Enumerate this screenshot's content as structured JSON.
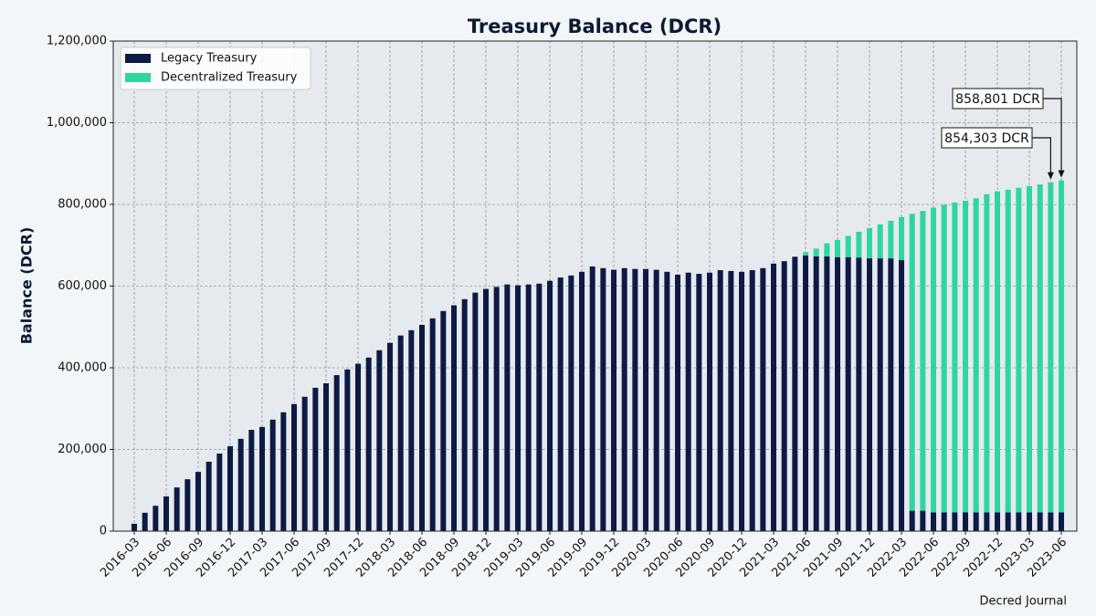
{
  "chart_data": {
    "type": "stacked_bar",
    "title": "Treasury Balance (DCR)",
    "ylabel": "Balance (DCR)",
    "credit": "Decred Journal",
    "categories": [
      "2016-03",
      null,
      null,
      "2016-06",
      null,
      null,
      "2016-09",
      null,
      null,
      "2016-12",
      null,
      null,
      "2017-03",
      null,
      null,
      "2017-06",
      null,
      null,
      "2017-09",
      null,
      null,
      "2017-12",
      null,
      null,
      "2018-03",
      null,
      null,
      "2018-06",
      null,
      null,
      "2018-09",
      null,
      null,
      "2018-12",
      null,
      null,
      "2019-03",
      null,
      null,
      "2019-06",
      null,
      null,
      "2019-09",
      null,
      null,
      "2019-12",
      null,
      null,
      "2020-03",
      null,
      null,
      "2020-06",
      null,
      null,
      "2020-09",
      null,
      null,
      "2020-12",
      null,
      null,
      "2021-03",
      null,
      null,
      "2021-06",
      null,
      null,
      "2021-09",
      null,
      null,
      "2021-12",
      null,
      null,
      "2022-03",
      null,
      null,
      "2022-06",
      null,
      null,
      "2022-09",
      null,
      null,
      "2022-12",
      null,
      null,
      "2023-03",
      null,
      null,
      "2023-06"
    ],
    "series": [
      {
        "name": "Legacy Treasury",
        "color": "#0d1a45",
        "values": [
          18000,
          45000,
          62000,
          85000,
          107000,
          127000,
          145000,
          170000,
          190000,
          208000,
          226000,
          248000,
          255000,
          273000,
          291000,
          311000,
          329000,
          351000,
          362000,
          382000,
          396000,
          410000,
          425000,
          443000,
          461000,
          479000,
          492000,
          505000,
          521000,
          539000,
          553000,
          568000,
          584000,
          593000,
          598000,
          604000,
          602000,
          604000,
          606000,
          613000,
          621000,
          626000,
          635000,
          648000,
          644000,
          640000,
          644000,
          642000,
          642000,
          640000,
          635000,
          628000,
          633000,
          630000,
          633000,
          639000,
          637000,
          635000,
          639000,
          644000,
          655000,
          661000,
          672000,
          675000,
          673000,
          673000,
          671000,
          671000,
          670000,
          668000,
          668000,
          668000,
          664000,
          50000,
          50000,
          46000,
          46000,
          46000,
          46000,
          46000,
          46000,
          46000,
          46000,
          46000,
          46000,
          46000,
          46000,
          46000
        ]
      },
      {
        "name": "Decentralized Treasury",
        "color": "#2ed6a0",
        "values": [
          null,
          null,
          null,
          null,
          null,
          null,
          null,
          null,
          null,
          null,
          null,
          null,
          null,
          null,
          null,
          null,
          null,
          null,
          null,
          null,
          null,
          null,
          null,
          null,
          null,
          null,
          null,
          null,
          null,
          null,
          null,
          null,
          null,
          null,
          null,
          null,
          null,
          null,
          null,
          null,
          null,
          null,
          null,
          null,
          null,
          null,
          null,
          null,
          null,
          null,
          null,
          null,
          null,
          null,
          null,
          null,
          null,
          null,
          null,
          null,
          null,
          null,
          null,
          8000,
          19000,
          32000,
          42000,
          52000,
          63000,
          74000,
          83000,
          92000,
          105000,
          727000,
          734000,
          746000,
          753000,
          759000,
          763000,
          769000,
          779000,
          786000,
          790000,
          795000,
          799000,
          803000,
          808303,
          812801
        ]
      }
    ],
    "annotations": [
      {
        "text": "858,801 DCR"
      },
      {
        "text": "854,303 DCR"
      }
    ],
    "ylim": [
      0,
      1200000
    ],
    "yticks": [
      0,
      {
        "value": 200000,
        "label": "200,000"
      },
      {
        "value": 400000,
        "label": "400,000"
      },
      {
        "value": 600000,
        "label": "600,000"
      },
      {
        "value": 800000,
        "label": "800,000"
      },
      {
        "value": 1000000,
        "label": "1,000,000"
      },
      {
        "value": 1200000,
        "label": "1,200,000"
      }
    ],
    "grid": true,
    "legend": "upper left"
  }
}
